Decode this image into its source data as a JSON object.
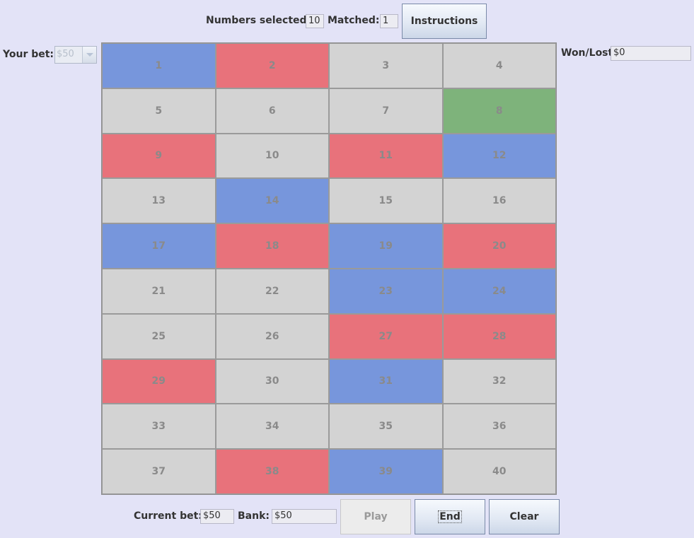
{
  "header": {
    "numbers_selected_label": "Numbers selected:",
    "numbers_selected_value": "10",
    "matched_label": "Matched:",
    "matched_value": "1",
    "instructions_label": "Instructions"
  },
  "bet": {
    "label": "Your bet:",
    "selected": "$50"
  },
  "result": {
    "label": "Won/Lost",
    "value": "$0"
  },
  "footer": {
    "current_bet_label": "Current bet:",
    "current_bet_value": "$50",
    "bank_label": "Bank:",
    "bank_value": "$50",
    "play_label": "Play",
    "end_label": "End",
    "clear_label": "Clear"
  },
  "colors": {
    "neutral": "#d3d3d3",
    "selected": "#7796dc",
    "drawn": "#e8727b",
    "matched": "#7eb37b"
  },
  "board": {
    "cells": [
      {
        "number": "1",
        "state": "selected"
      },
      {
        "number": "2",
        "state": "drawn"
      },
      {
        "number": "3",
        "state": "neutral"
      },
      {
        "number": "4",
        "state": "neutral"
      },
      {
        "number": "5",
        "state": "neutral"
      },
      {
        "number": "6",
        "state": "neutral"
      },
      {
        "number": "7",
        "state": "neutral"
      },
      {
        "number": "8",
        "state": "matched"
      },
      {
        "number": "9",
        "state": "drawn"
      },
      {
        "number": "10",
        "state": "neutral"
      },
      {
        "number": "11",
        "state": "drawn"
      },
      {
        "number": "12",
        "state": "selected"
      },
      {
        "number": "13",
        "state": "neutral"
      },
      {
        "number": "14",
        "state": "selected"
      },
      {
        "number": "15",
        "state": "neutral"
      },
      {
        "number": "16",
        "state": "neutral"
      },
      {
        "number": "17",
        "state": "selected"
      },
      {
        "number": "18",
        "state": "drawn"
      },
      {
        "number": "19",
        "state": "selected"
      },
      {
        "number": "20",
        "state": "drawn"
      },
      {
        "number": "21",
        "state": "neutral"
      },
      {
        "number": "22",
        "state": "neutral"
      },
      {
        "number": "23",
        "state": "selected"
      },
      {
        "number": "24",
        "state": "selected"
      },
      {
        "number": "25",
        "state": "neutral"
      },
      {
        "number": "26",
        "state": "neutral"
      },
      {
        "number": "27",
        "state": "drawn"
      },
      {
        "number": "28",
        "state": "drawn"
      },
      {
        "number": "29",
        "state": "drawn"
      },
      {
        "number": "30",
        "state": "neutral"
      },
      {
        "number": "31",
        "state": "selected"
      },
      {
        "number": "32",
        "state": "neutral"
      },
      {
        "number": "33",
        "state": "neutral"
      },
      {
        "number": "34",
        "state": "neutral"
      },
      {
        "number": "35",
        "state": "neutral"
      },
      {
        "number": "36",
        "state": "neutral"
      },
      {
        "number": "37",
        "state": "neutral"
      },
      {
        "number": "38",
        "state": "drawn"
      },
      {
        "number": "39",
        "state": "selected"
      },
      {
        "number": "40",
        "state": "neutral"
      }
    ]
  }
}
